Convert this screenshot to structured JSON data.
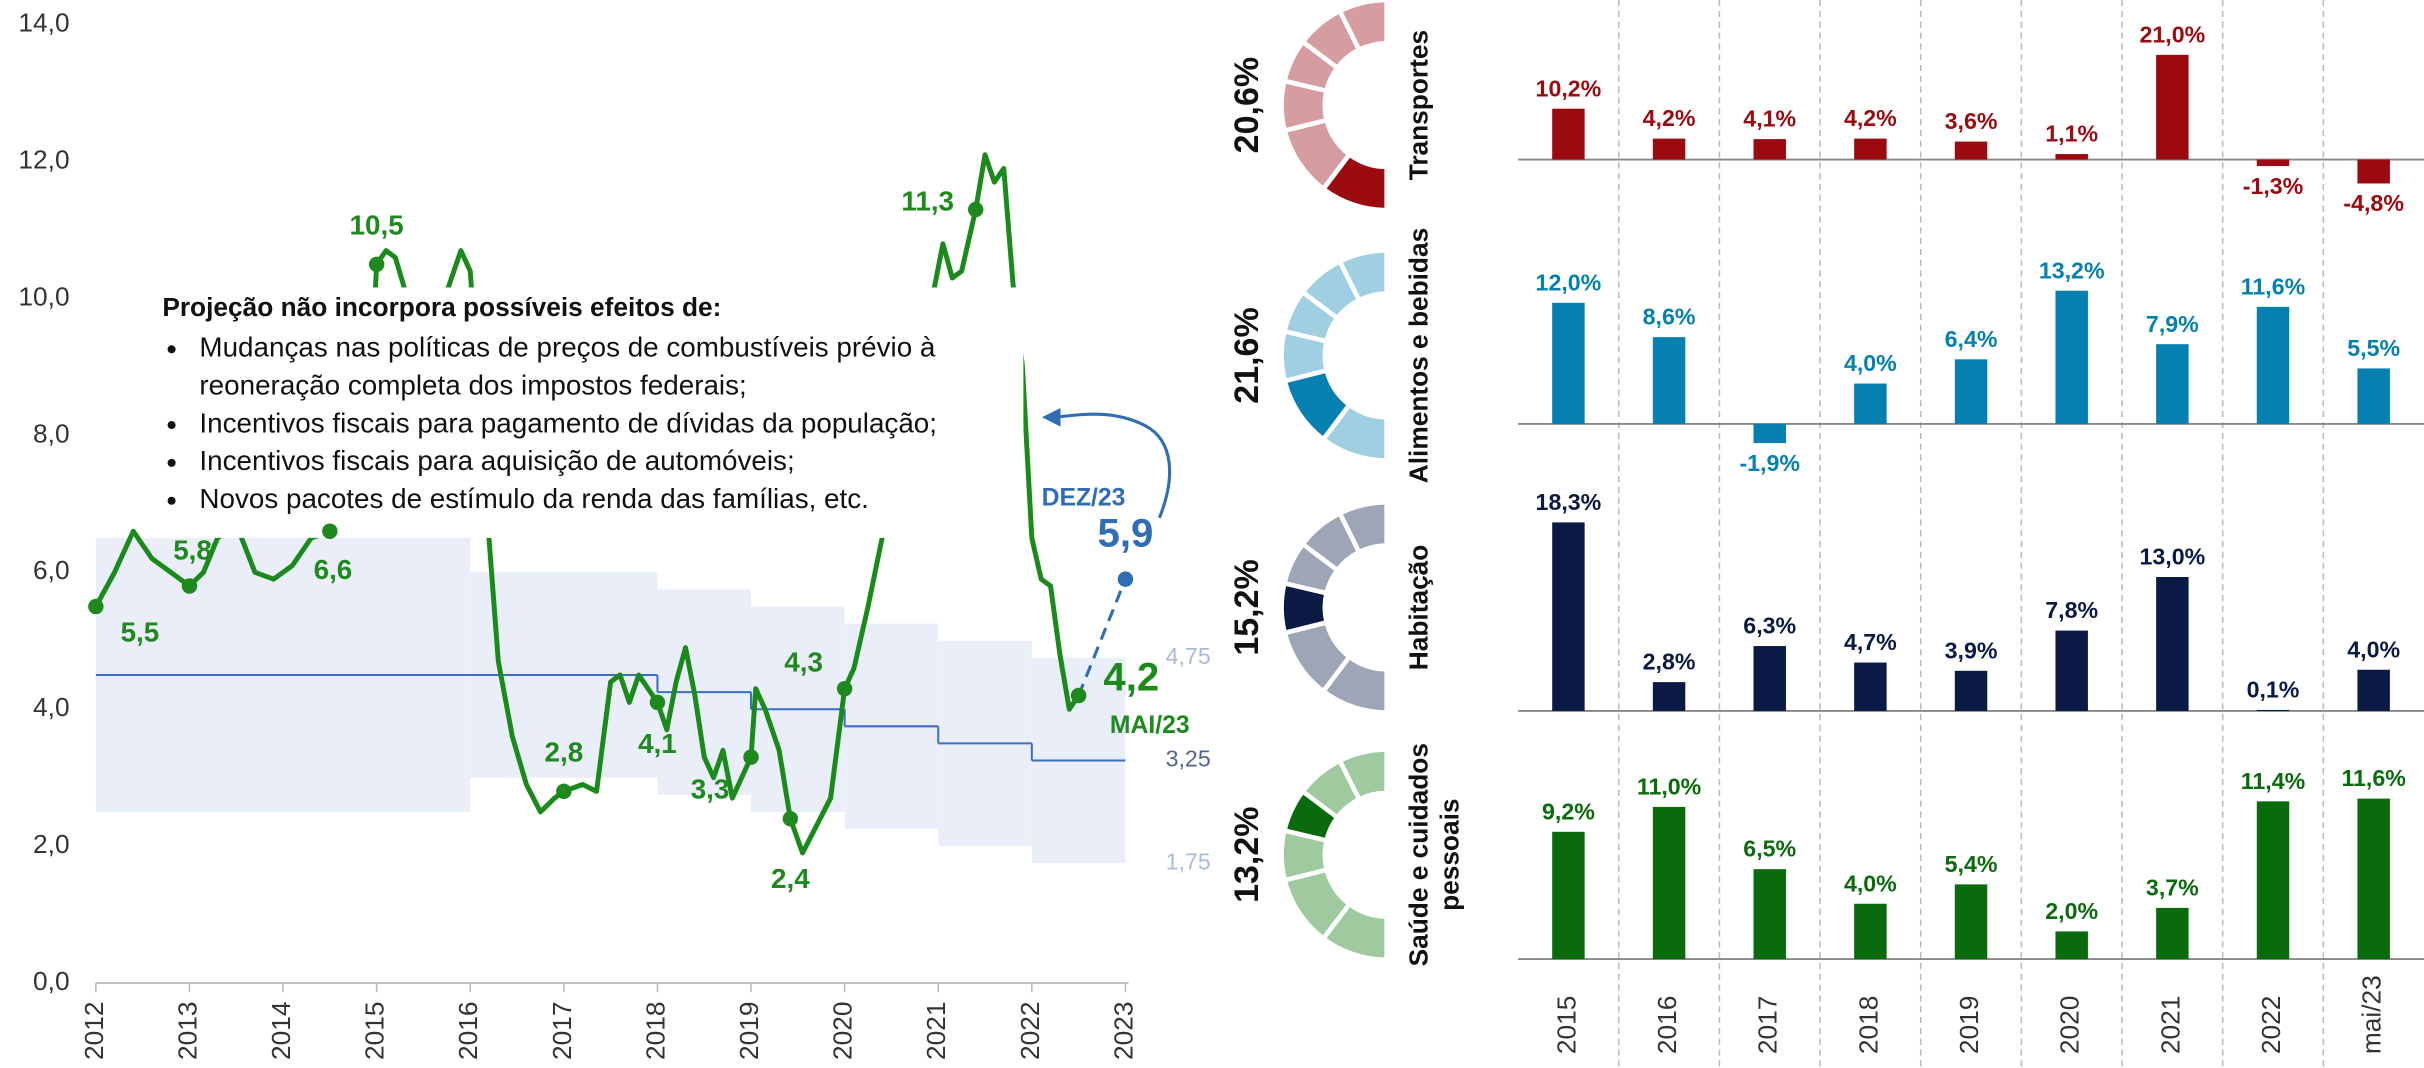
{
  "chart_data": [
    {
      "type": "line",
      "xlim": [
        2012,
        2023
      ],
      "xticks": [
        2012,
        2013,
        2014,
        2015,
        2016,
        2017,
        2018,
        2019,
        2020,
        2021,
        2022,
        2023
      ],
      "ylim": [
        0,
        14
      ],
      "yticks": [
        {
          "value": 0,
          "label": "0,0"
        },
        {
          "value": 2,
          "label": "2,0"
        },
        {
          "value": 4,
          "label": "4,0"
        },
        {
          "value": 6,
          "label": "6,0"
        },
        {
          "value": 8,
          "label": "8,0"
        },
        {
          "value": 10,
          "label": "10,0"
        },
        {
          "value": 12,
          "label": "12,0"
        },
        {
          "value": 14,
          "label": "14,0"
        }
      ],
      "series": [
        {
          "color": "#1a8a1a",
          "x": [
            2012.0,
            2012.2,
            2012.4,
            2012.6,
            2012.8,
            2013.0,
            2013.15,
            2013.3,
            2013.5,
            2013.7,
            2013.9,
            2014.1,
            2014.3,
            2014.5,
            2014.7,
            2014.9,
            2015.0,
            2015.1,
            2015.2,
            2015.35,
            2015.6,
            2015.9,
            2016.0,
            2016.1,
            2016.2,
            2016.3,
            2016.45,
            2016.6,
            2016.75,
            2016.9,
            2017.0,
            2017.2,
            2017.35,
            2017.5,
            2017.6,
            2017.7,
            2017.8,
            2017.9,
            2018.0,
            2018.1,
            2018.2,
            2018.3,
            2018.4,
            2018.5,
            2018.6,
            2018.7,
            2018.8,
            2018.9,
            2019.0,
            2019.05,
            2019.15,
            2019.3,
            2019.42,
            2019.55,
            2019.7,
            2019.85,
            2020.0,
            2020.1,
            2020.25,
            2020.4,
            2020.6,
            2020.8,
            2020.95,
            2021.05,
            2021.15,
            2021.25,
            2021.4,
            2021.5,
            2021.6,
            2021.7,
            2021.8,
            2021.9,
            2022.0,
            2022.1,
            2022.2,
            2022.3,
            2022.4,
            2022.5
          ],
          "values": [
            5.5,
            6.0,
            6.6,
            6.2,
            6.0,
            5.8,
            6.0,
            6.5,
            6.7,
            6.0,
            5.9,
            6.1,
            6.5,
            6.6,
            7.0,
            7.8,
            10.5,
            10.7,
            10.6,
            9.9,
            9.5,
            10.7,
            10.4,
            8.5,
            6.5,
            4.7,
            3.6,
            2.9,
            2.5,
            2.7,
            2.8,
            2.9,
            2.8,
            4.4,
            4.5,
            4.1,
            4.5,
            4.3,
            4.1,
            3.7,
            4.4,
            4.9,
            4.2,
            3.3,
            3.0,
            3.4,
            2.7,
            3.0,
            3.3,
            4.3,
            4.0,
            3.4,
            2.4,
            1.9,
            2.3,
            2.7,
            4.3,
            4.6,
            5.5,
            6.5,
            8.0,
            9.5,
            10.1,
            10.8,
            10.3,
            10.4,
            11.3,
            12.1,
            11.7,
            11.9,
            10.2,
            9.0,
            6.5,
            5.9,
            5.8,
            4.8,
            4.0,
            4.2
          ]
        },
        {
          "color": "#2f6db5",
          "dashed": true,
          "x": [
            2022.5,
            2023.0
          ],
          "values": [
            4.2,
            5.9
          ]
        }
      ],
      "target_band": {
        "x": [
          2012,
          2016,
          2018,
          2019,
          2020,
          2021,
          2022
        ],
        "center": [
          4.5,
          4.5,
          4.25,
          4.0,
          3.75,
          3.5,
          3.25
        ],
        "upper": [
          6.5,
          6.0,
          5.75,
          5.5,
          5.25,
          5.0,
          4.75
        ],
        "lower": [
          2.5,
          3.0,
          2.75,
          2.5,
          2.25,
          2.0,
          1.75
        ],
        "line_color": "#3a6fc4",
        "fill_color": "#e9eef8",
        "labels": [
          {
            "value": 4.75,
            "label": "4,75"
          },
          {
            "value": 3.25,
            "label": "3,25"
          },
          {
            "value": 1.75,
            "label": "1,75"
          }
        ]
      },
      "annotations": [
        {
          "x": 2012.0,
          "y": 5.5,
          "label": "5,5"
        },
        {
          "x": 2013.0,
          "y": 5.8,
          "label": "5,8"
        },
        {
          "x": 2014.5,
          "y": 6.6,
          "label": "6,6"
        },
        {
          "x": 2015.0,
          "y": 10.5,
          "label": "10,5"
        },
        {
          "x": 2021.4,
          "y": 11.3,
          "label": "11,3"
        },
        {
          "x": 2017.0,
          "y": 2.8,
          "label": "2,8"
        },
        {
          "x": 2018.0,
          "y": 4.1,
          "label": "4,1"
        },
        {
          "x": 2019.0,
          "y": 3.3,
          "label": "3,3"
        },
        {
          "x": 2019.42,
          "y": 2.4,
          "label": "2,4"
        },
        {
          "x": 2020.0,
          "y": 4.3,
          "label": "4,3"
        },
        {
          "x": 2022.5,
          "y": 4.2,
          "label": "4,2"
        },
        {
          "x": 2023.0,
          "y": 5.9,
          "label": "5,9"
        }
      ],
      "last_label": "MAI/23",
      "projection_label": "DEZ/23",
      "note": {
        "title": "Projeção não incorpora possíveis efeitos de:",
        "items": [
          [
            "Mudanças nas políticas de preços de combustíveis prévio à",
            "reoneração completa dos impostos federais;"
          ],
          [
            "Incentivos fiscais para pagamento de dívidas da população;"
          ],
          [
            "Incentivos fiscais para aquisição de automóveis;"
          ],
          [
            "Novos pacotes de estímulo da renda das famílias, etc."
          ]
        ]
      }
    },
    {
      "type": "bar_panels",
      "categories": [
        "2015",
        "2016",
        "2017",
        "2018",
        "2019",
        "2020",
        "2021",
        "2022",
        "mai/23"
      ],
      "rows": [
        {
          "name_lines": [
            "Transportes"
          ],
          "share": 20.6,
          "share_label": "20,6%",
          "color": "#9b0a0f",
          "light_color": "#d69da1",
          "ylim": [
            -14.5,
            32
          ],
          "values": [
            10.2,
            4.2,
            4.1,
            4.2,
            3.6,
            1.1,
            21.0,
            -1.3,
            -4.8
          ],
          "value_labels": [
            "10,2%",
            "4,2%",
            "4,1%",
            "4,2%",
            "3,6%",
            "1,1%",
            "21,0%",
            "-1,3%",
            "-4,8%"
          ]
        },
        {
          "name_lines": [
            "Alimentos e bebidas"
          ],
          "share": 21.6,
          "share_label": "21,6%",
          "color": "#0580b0",
          "light_color": "#a1cfe2",
          "ylim": [
            -7,
            17.5
          ],
          "values": [
            12.0,
            8.6,
            -1.9,
            4.0,
            6.4,
            13.2,
            7.9,
            11.6,
            5.5
          ],
          "value_labels": [
            "12,0%",
            "8,6%",
            "-1,9%",
            "4,0%",
            "6,4%",
            "13,2%",
            "7,9%",
            "11,6%",
            "5,5%"
          ]
        },
        {
          "name_lines": [
            "Habitação"
          ],
          "share": 15.2,
          "share_label": "15,2%",
          "color": "#0b1a45",
          "light_color": "#9ea5b7",
          "ylim": [
            -1.5,
            21
          ],
          "values": [
            18.3,
            2.8,
            6.3,
            4.7,
            3.9,
            7.8,
            13.0,
            0.1,
            4.0
          ],
          "value_labels": [
            "18,3%",
            "2,8%",
            "6,3%",
            "4,7%",
            "3,9%",
            "7,8%",
            "13,0%",
            "0,1%",
            "4,0%"
          ]
        },
        {
          "name_lines": [
            "Saúde e cuidados",
            "pessoais"
          ],
          "share": 13.2,
          "share_label": "13,2%",
          "color": "#0a6b0c",
          "light_color": "#9fc99f",
          "ylim": [
            -0.5,
            15.7
          ],
          "values": [
            9.2,
            11.0,
            6.5,
            4.0,
            5.4,
            2.0,
            3.7,
            11.4,
            11.6
          ],
          "value_labels": [
            "9,2%",
            "11,0%",
            "6,5%",
            "4,0%",
            "5,4%",
            "2,0%",
            "3,7%",
            "11,4%",
            "11,6%"
          ]
        }
      ]
    }
  ]
}
